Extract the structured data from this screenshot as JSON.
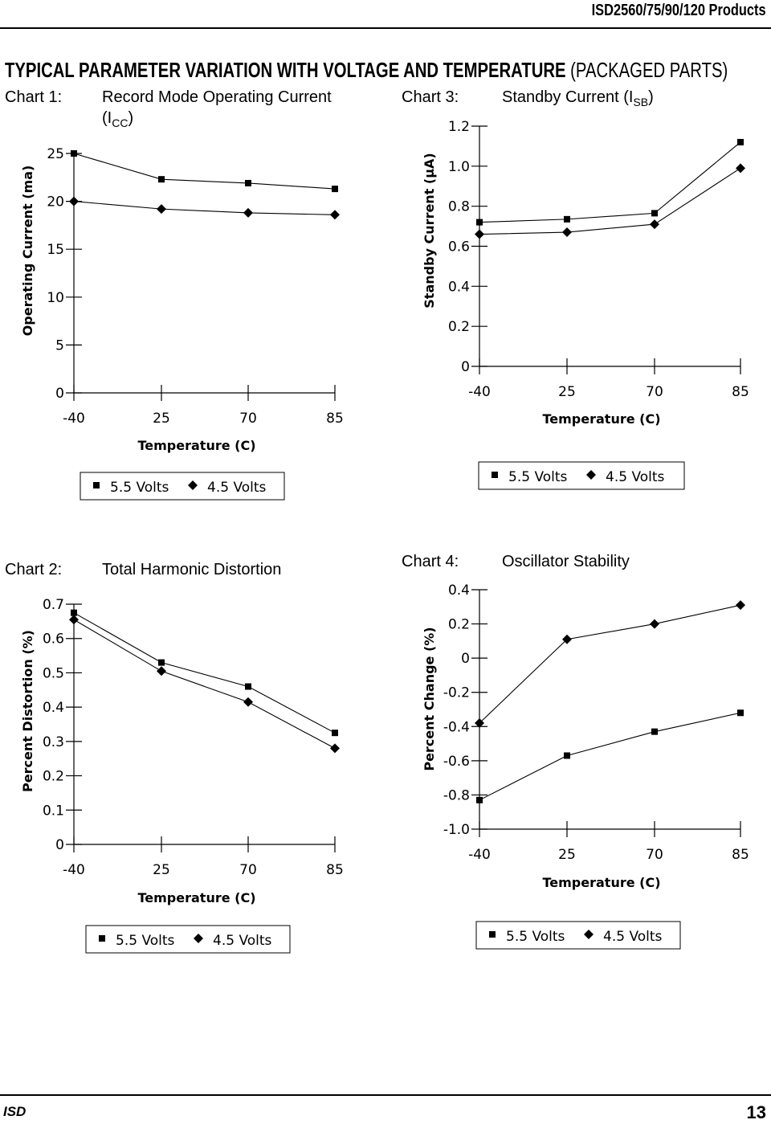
{
  "header": {
    "title": "ISD2560/75/90/120 Products"
  },
  "section": {
    "title_main": "TYPICAL PARAMETER VARIATION WITH VOLTAGE AND TEMPERATURE",
    "title_sub": "(PACKAGED PARTS)"
  },
  "footer": {
    "left": "ISD",
    "page": "13"
  },
  "chart_labels": {
    "c1_num": "Chart 1:",
    "c1_title_line1": "Record Mode Operating Current",
    "c1_title_line2_a": "(I",
    "c1_title_line2_sub": "CC",
    "c1_title_line2_b": ")",
    "c3_num": "Chart 3:",
    "c3_title_a": "Standby Current (I",
    "c3_title_sub": "SB",
    "c3_title_b": ")",
    "c2_num": "Chart 2:",
    "c2_title": "Total Harmonic Distortion",
    "c4_num": "Chart 4:",
    "c4_title": "Oscillator Stability"
  },
  "colors": {
    "ink": "#000000",
    "paper": "#ffffff"
  },
  "chart_data": [
    {
      "id": "c1",
      "type": "line",
      "title": "Record Mode Operating Current (ICC)",
      "xlabel": "Temperature (C)",
      "ylabel": "Operating Current (ma)",
      "categories": [
        "-40",
        "25",
        "70",
        "85"
      ],
      "yticks": [
        "0",
        "5",
        "10",
        "15",
        "20",
        "25"
      ],
      "ylim": [
        0,
        25
      ],
      "series": [
        {
          "name": "5.5 Volts",
          "marker": "square",
          "values": [
            25,
            22.3,
            21.9,
            21.3
          ]
        },
        {
          "name": "4.5 Volts",
          "marker": "diamond",
          "values": [
            20,
            19.2,
            18.8,
            18.6
          ]
        }
      ]
    },
    {
      "id": "c3",
      "type": "line",
      "title": "Standby Current (ISB)",
      "xlabel": "Temperature (C)",
      "ylabel": "Standby Current (μA)",
      "categories": [
        "-40",
        "25",
        "70",
        "85"
      ],
      "yticks": [
        "0",
        "0.2",
        "0.4",
        "0.6",
        "0.8",
        "1.0",
        "1.2"
      ],
      "ylim": [
        0,
        1.2
      ],
      "series": [
        {
          "name": "5.5 Volts",
          "marker": "square",
          "values": [
            0.72,
            0.735,
            0.765,
            1.12
          ]
        },
        {
          "name": "4.5 Volts",
          "marker": "diamond",
          "values": [
            0.66,
            0.67,
            0.71,
            0.99
          ]
        }
      ]
    },
    {
      "id": "c2",
      "type": "line",
      "title": "Total Harmonic Distortion",
      "xlabel": "Temperature (C)",
      "ylabel": "Percent Distortion (%)",
      "categories": [
        "-40",
        "25",
        "70",
        "85"
      ],
      "yticks": [
        "0",
        "0.1",
        "0.2",
        "0.3",
        "0.4",
        "0.5",
        "0.6",
        "0.7"
      ],
      "ylim": [
        0,
        0.7
      ],
      "series": [
        {
          "name": "5.5 Volts",
          "marker": "square",
          "values": [
            0.675,
            0.53,
            0.46,
            0.325
          ]
        },
        {
          "name": "4.5 Volts",
          "marker": "diamond",
          "values": [
            0.655,
            0.505,
            0.415,
            0.28
          ]
        }
      ]
    },
    {
      "id": "c4",
      "type": "line",
      "title": "Oscillator Stability",
      "xlabel": "Temperature (C)",
      "ylabel": "Percent Change (%)",
      "categories": [
        "-40",
        "25",
        "70",
        "85"
      ],
      "yticks": [
        "-1.0",
        "-0.8",
        "-0.6",
        "-0.4",
        "-0.2",
        "0",
        "0.2",
        "0.4"
      ],
      "ylim": [
        -1.0,
        0.4
      ],
      "series": [
        {
          "name": "5.5 Volts",
          "marker": "square",
          "values": [
            -0.83,
            -0.57,
            -0.43,
            -0.32
          ]
        },
        {
          "name": "4.5 Volts",
          "marker": "diamond",
          "values": [
            -0.38,
            0.11,
            0.2,
            0.31
          ]
        }
      ]
    }
  ]
}
